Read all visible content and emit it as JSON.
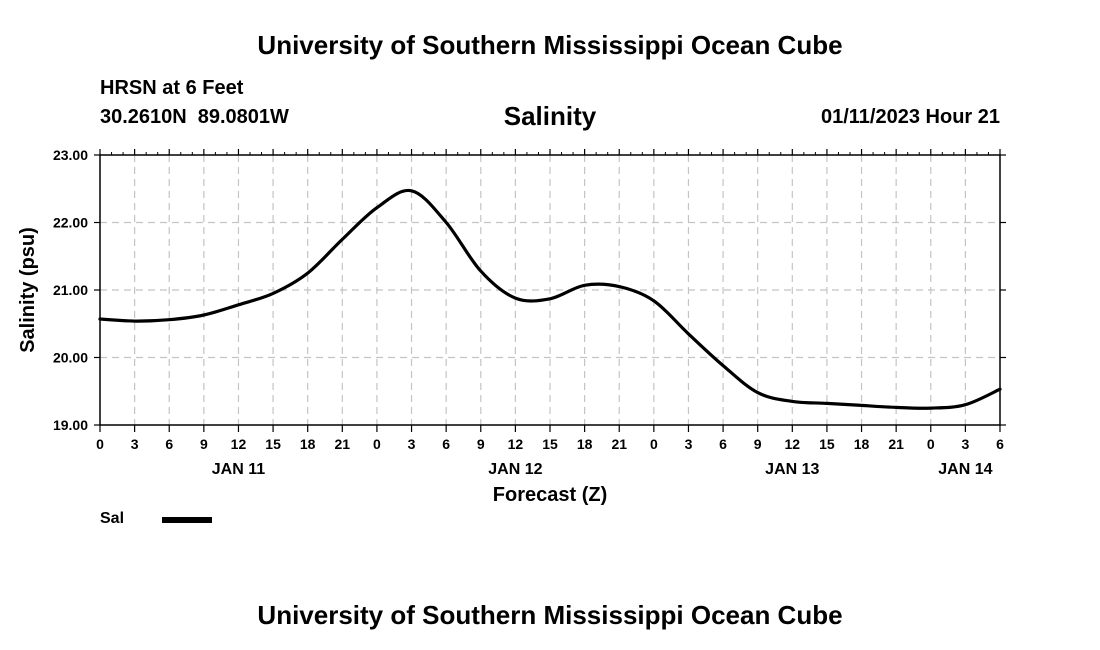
{
  "header": {
    "title": "University of Southern Mississippi Ocean Cube",
    "station": "HRSN at 6 Feet",
    "lat": "30.2610N",
    "lon": "89.0801W",
    "issued": "01/11/2023 Hour 21"
  },
  "footer": {
    "title": "University of Southern Mississippi Ocean Cube"
  },
  "legend": {
    "label": "Sal",
    "color": "#000000"
  },
  "chart_data": {
    "type": "line",
    "title": "Salinity",
    "xlabel": "Forecast (Z)",
    "ylabel": "Salinity (psu)",
    "ylim": [
      19.0,
      23.0
    ],
    "xlim": [
      0,
      78
    ],
    "y_ticks": [
      "19.00",
      "20.00",
      "21.00",
      "22.00",
      "23.00"
    ],
    "y_tick_values": [
      19.0,
      20.0,
      21.0,
      22.0,
      23.0
    ],
    "x_tick_hours": [
      0,
      3,
      6,
      9,
      12,
      15,
      18,
      21,
      24,
      27,
      30,
      33,
      36,
      39,
      42,
      45,
      48,
      51,
      54,
      57,
      60,
      63,
      66,
      69,
      72,
      75,
      78
    ],
    "x_tick_labels": [
      "0",
      "3",
      "6",
      "9",
      "12",
      "15",
      "18",
      "21",
      "0",
      "3",
      "6",
      "9",
      "12",
      "15",
      "18",
      "21",
      "0",
      "3",
      "6",
      "9",
      "12",
      "15",
      "18",
      "21",
      "0",
      "3",
      "6"
    ],
    "date_labels": [
      {
        "label": "JAN 11",
        "hour": 12
      },
      {
        "label": "JAN 12",
        "hour": 36
      },
      {
        "label": "JAN 13",
        "hour": 60
      },
      {
        "label": "JAN 14",
        "hour": 75
      }
    ],
    "grid": true,
    "series": [
      {
        "name": "Sal",
        "color": "#000000",
        "x": [
          0,
          3,
          6,
          9,
          12,
          15,
          18,
          21,
          24,
          27,
          30,
          33,
          36,
          39,
          42,
          45,
          48,
          51,
          54,
          57,
          60,
          63,
          66,
          69,
          72,
          75,
          78
        ],
        "values": [
          20.57,
          20.54,
          20.56,
          20.63,
          20.78,
          20.95,
          21.25,
          21.75,
          22.22,
          22.47,
          22.0,
          21.28,
          20.88,
          20.87,
          21.07,
          21.05,
          20.84,
          20.35,
          19.88,
          19.48,
          19.35,
          19.32,
          19.29,
          19.26,
          19.25,
          19.3,
          19.53
        ]
      }
    ]
  }
}
